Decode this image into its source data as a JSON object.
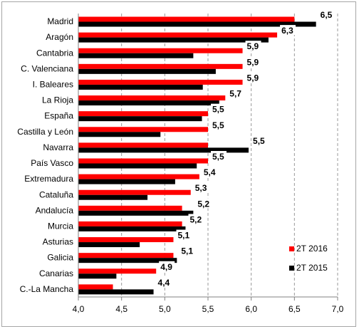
{
  "chart_data": {
    "type": "bar",
    "orientation": "horizontal",
    "categories": [
      "Madrid",
      "Aragón",
      "Cantabria",
      "C. Valenciana",
      "I. Baleares",
      "La Rioja",
      "España",
      "Castilla y León",
      "Navarra",
      "País Vasco",
      "Extremadura",
      "Cataluña",
      "Andalucía",
      "Murcia",
      "Asturias",
      "Galicia",
      "Canarias",
      "C.-La Mancha"
    ],
    "series": [
      {
        "name": "2T 2016",
        "color": "#ff0000",
        "values": [
          6.5,
          6.3,
          5.9,
          5.9,
          5.9,
          5.7,
          5.5,
          5.5,
          5.5,
          5.5,
          5.4,
          5.3,
          5.2,
          5.2,
          5.1,
          5.1,
          4.9,
          4.4
        ],
        "labels": [
          "6,5",
          "6,3",
          "5,9",
          "5,9",
          "5,9",
          "5,7",
          "5,5",
          "5,5",
          "5,5",
          "5,5",
          "5,4",
          "5,3",
          "5,2",
          "5,2",
          "5,1",
          "5,1",
          "4,9",
          "4,4"
        ]
      },
      {
        "name": "2T 2015",
        "color": "#000000",
        "values": [
          6.75,
          6.2,
          5.33,
          5.59,
          5.44,
          5.63,
          5.43,
          4.95,
          5.97,
          5.37,
          5.12,
          4.8,
          5.33,
          5.24,
          4.71,
          5.14,
          4.44,
          4.87
        ]
      }
    ],
    "xlim": [
      4.0,
      7.0
    ],
    "xticks": [
      "4,0",
      "4,5",
      "5,0",
      "5,5",
      "6,0",
      "6,5",
      "7,0"
    ],
    "grid": "vertical-dashed",
    "legend": "bottom-right",
    "title": "",
    "xlabel": "",
    "ylabel": ""
  }
}
